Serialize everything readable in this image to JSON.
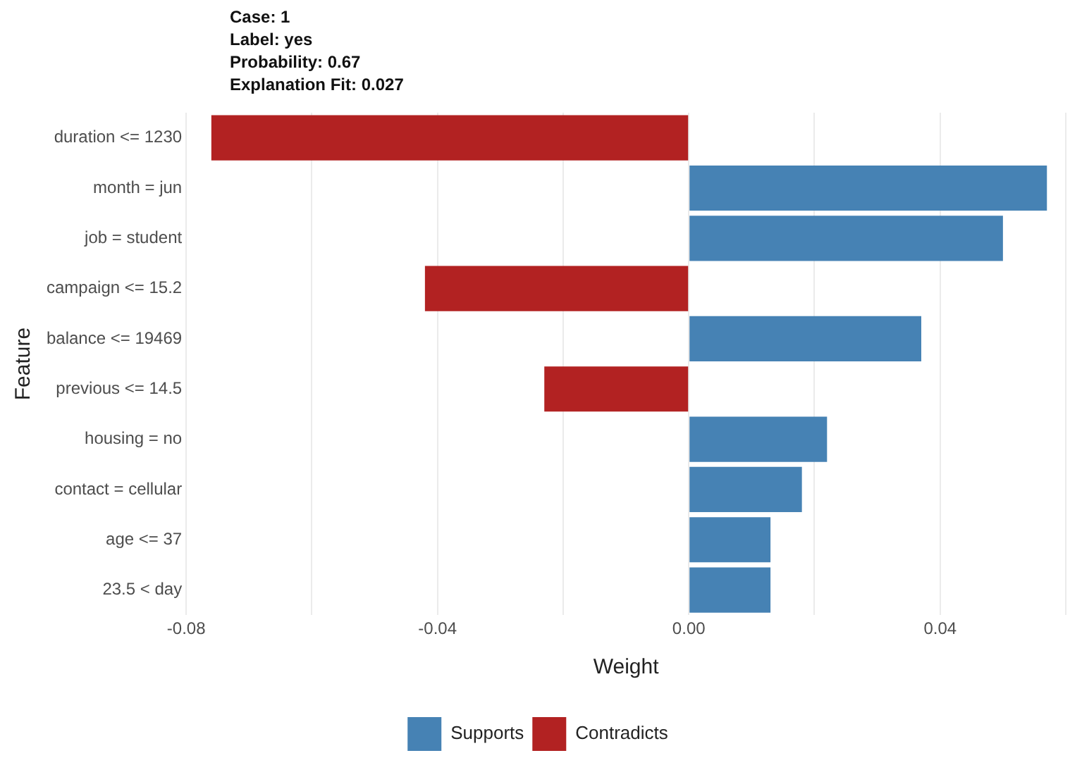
{
  "chart_data": {
    "type": "bar",
    "orientation": "horizontal",
    "title": "Case: 1\nLabel: yes\nProbability: 0.67\nExplanation Fit: 0.027",
    "xlabel": "Weight",
    "ylabel": "Feature",
    "categories": [
      "duration <= 1230",
      "month = jun",
      "job = student",
      "campaign <= 15.2",
      "balance <= 19469",
      "previous <= 14.5",
      "housing = no",
      "contact = cellular",
      "age <= 37",
      "23.5 < day"
    ],
    "series": [
      {
        "name": "Supports",
        "color": "#4682b4",
        "values": [
          null,
          0.057,
          0.05,
          null,
          0.037,
          null,
          0.022,
          0.018,
          0.013,
          0.013
        ]
      },
      {
        "name": "Contradicts",
        "color": "#b22222",
        "values": [
          -0.076,
          null,
          null,
          -0.042,
          null,
          -0.023,
          null,
          null,
          null,
          null
        ]
      }
    ],
    "xlim": [
      -0.08,
      0.06
    ],
    "xticks": [
      -0.08,
      {
        "value": -0.06,
        "label": null
      },
      -0.04,
      {
        "value": -0.02,
        "label": null
      },
      "0.00",
      {
        "value": 0.02,
        "label": null
      },
      0.04,
      {
        "value": 0.06,
        "label": null
      }
    ],
    "grid": "x",
    "legend": "bottom"
  }
}
